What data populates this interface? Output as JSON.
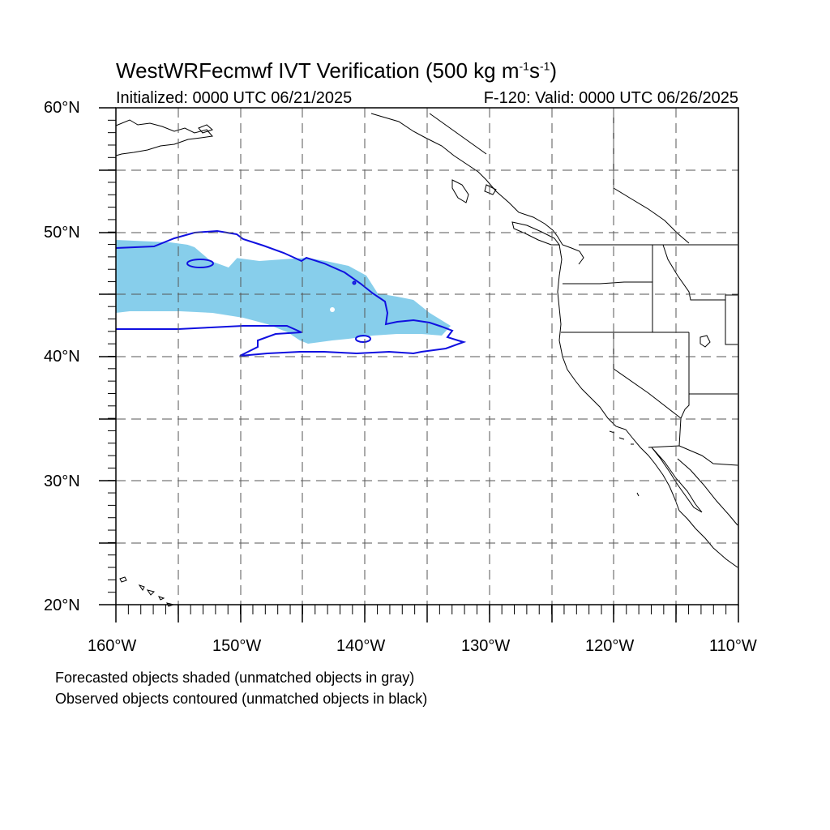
{
  "title": {
    "main": "WestWRFecmwf IVT Verification (500 kg m",
    "exp1": "-1",
    "s_part": "s",
    "exp2": "-1",
    "close": ")"
  },
  "initialized": "Initialized: 0000 UTC 06/21/2025",
  "valid": "F-120: Valid: 0000 UTC 06/26/2025",
  "lat_labels": [
    "60°N",
    "50°N",
    "40°N",
    "30°N",
    "20°N"
  ],
  "lon_labels": [
    "160°W",
    "150°W",
    "140°W",
    "130°W",
    "120°W",
    "110°W"
  ],
  "notes": [
    "Forecasted objects shaded (unmatched objects in gray)",
    "Observed objects contoured (unmatched objects in black)"
  ],
  "map": {
    "extent": {
      "lon": [
        -160,
        -110
      ],
      "lat": [
        20,
        60
      ]
    },
    "grid_interval_deg": 5,
    "forecast_fill_color": "#87ceeb",
    "observed_contour_color": "#1010e0",
    "coastline_color": "#000000"
  }
}
